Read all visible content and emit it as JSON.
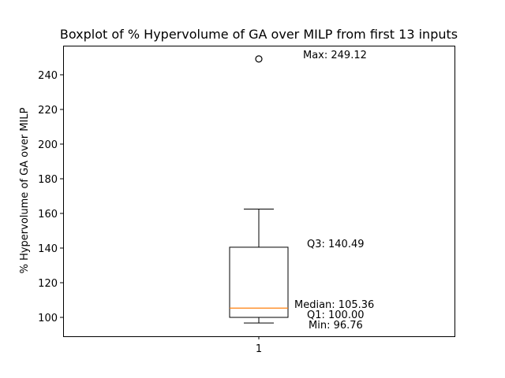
{
  "chart_data": {
    "type": "boxplot",
    "title": "Boxplot of % Hypervolume of GA over MILP from first 13 inputs",
    "xlabel": "",
    "ylabel": "% Hypervolume of GA over MILP",
    "categories": [
      "1"
    ],
    "ylim": [
      89.1,
      256.8
    ],
    "yticks": [
      100,
      120,
      140,
      160,
      180,
      200,
      220,
      240
    ],
    "grid": false,
    "box": {
      "min": 96.76,
      "q1": 100.0,
      "median": 105.36,
      "q3": 140.49,
      "whisker_high": 162.5,
      "outliers": [
        249.12
      ]
    },
    "annotations": [
      {
        "text": "Max: 249.12",
        "value": 249.12
      },
      {
        "text": "Q3: 140.49",
        "value": 140.49
      },
      {
        "text": "Median: 105.36",
        "value": 105.36
      },
      {
        "text": "Q1: 100.00",
        "value": 100.0
      },
      {
        "text": "Min: 96.76",
        "value": 96.76
      }
    ],
    "colors": {
      "box": "#000000",
      "median": "#ff7f0e",
      "outlier": "#000000"
    }
  }
}
